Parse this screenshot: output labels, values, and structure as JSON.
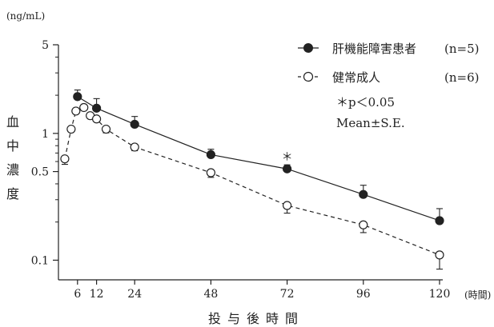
{
  "chart_data": {
    "type": "line",
    "y_unit": "(ng/mL)",
    "x_unit": "(時間)",
    "xlabel": "投与後時間",
    "ylabel": "血中濃度",
    "yscale": "log",
    "ylim": [
      0.07,
      5
    ],
    "xlim": [
      0,
      120
    ],
    "x_ticks": [
      6,
      12,
      24,
      48,
      72,
      96,
      120
    ],
    "y_ticks": [
      {
        "value": 5,
        "label": "5"
      },
      {
        "value": 1,
        "label": "1"
      },
      {
        "value": 0.5,
        "label": "0.5"
      },
      {
        "value": 0.1,
        "label": "0.1"
      }
    ],
    "series": [
      {
        "name": "肝機能障害患者",
        "n_label": "(n=5)",
        "marker": "filled-circle",
        "line_style": "solid",
        "x": [
          6,
          12,
          24,
          48,
          72,
          96,
          120
        ],
        "y": [
          1.95,
          1.58,
          1.18,
          0.68,
          0.525,
          0.33,
          0.205
        ],
        "err": [
          0.25,
          0.3,
          0.18,
          0.07,
          0.04,
          0.06,
          0.05
        ]
      },
      {
        "name": "健常成人",
        "n_label": "(n=6)",
        "marker": "open-circle",
        "line_style": "dashed",
        "x": [
          2,
          4,
          5.5,
          8,
          10,
          12,
          15,
          24,
          48,
          72,
          96,
          120
        ],
        "y": [
          0.63,
          1.08,
          1.5,
          1.6,
          1.38,
          1.3,
          1.08,
          0.78,
          0.49,
          0.27,
          0.19,
          0.11
        ],
        "err": [
          0.06,
          0,
          0,
          0,
          0,
          0,
          0.07,
          0.05,
          0.04,
          0.035,
          0.025,
          0.025
        ]
      }
    ],
    "annotations": [
      {
        "text": "＊",
        "x": 72,
        "near_series": "肝機能障害患者"
      }
    ],
    "note_lines": [
      "＊p＜0.05",
      "Mean±S.E."
    ],
    "legend_position": "top-right",
    "grid": false
  }
}
